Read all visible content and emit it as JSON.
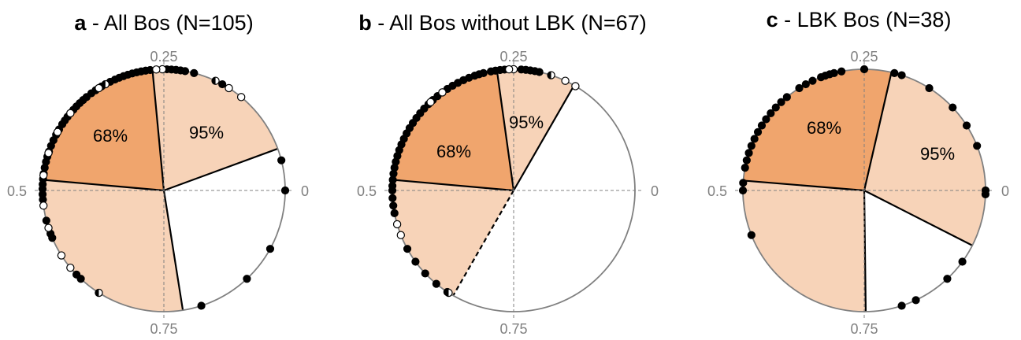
{
  "chart_data": [
    {
      "type": "circular-scatter",
      "panel_letter": "a",
      "title": " - All Bos (N=105)",
      "axis_labels": [
        "0",
        "0.25",
        "0.5",
        "0.75"
      ],
      "sectors": [
        {
          "label": "68%",
          "from": 0.265,
          "to": 0.486,
          "fill": "#f0a56d"
        },
        {
          "label": "95%",
          "from": 0.056,
          "to": 0.265,
          "fill": "#f7d3b8"
        },
        {
          "label": "",
          "from": 0.486,
          "to": 0.775,
          "fill": "#f7d3b8"
        }
      ],
      "points_black": [
        0.268,
        0.274,
        0.28,
        0.286,
        0.292,
        0.298,
        0.304,
        0.31,
        0.316,
        0.323,
        0.33,
        0.336,
        0.345,
        0.352,
        0.36,
        0.366,
        0.372,
        0.378,
        0.384,
        0.39,
        0.396,
        0.402,
        0.408,
        0.416,
        0.424,
        0.432,
        0.44,
        0.448,
        0.455,
        0.462,
        0.47,
        0.478,
        0.485,
        0.492,
        0.498,
        0.505,
        0.512,
        0.54,
        0.558,
        0.564,
        0.622,
        0.63,
        0.246,
        0.24,
        0.234,
        0.228,
        0.222,
        0.21,
        0.17,
        0.04,
        0.0,
        0.92,
        0.87,
        0.8
      ],
      "points_white": [
        0.252,
        0.26,
        0.34,
        0.39,
        0.42,
        0.45,
        0.48,
        0.52,
        0.55,
        0.59,
        0.61,
        0.16,
        0.14
      ],
      "points_half": [
        0.33,
        0.66,
        0.18
      ]
    },
    {
      "type": "circular-scatter",
      "panel_letter": "b",
      "title": " - All Bos without LBK (N=67)",
      "axis_labels": [
        "0",
        "0.25",
        "0.5",
        "0.75"
      ],
      "sectors": [
        {
          "label": "68%",
          "from": 0.272,
          "to": 0.486,
          "fill": "#f0a56d"
        },
        {
          "label": "95%",
          "from": 0.167,
          "to": 0.272,
          "fill": "#f7d3b8"
        },
        {
          "label": "",
          "from": 0.486,
          "to": 0.667,
          "fill": "#f7d3b8"
        }
      ],
      "points_black": [
        0.262,
        0.268,
        0.274,
        0.28,
        0.29,
        0.296,
        0.302,
        0.31,
        0.318,
        0.326,
        0.334,
        0.342,
        0.35,
        0.358,
        0.366,
        0.374,
        0.382,
        0.39,
        0.398,
        0.406,
        0.414,
        0.422,
        0.43,
        0.438,
        0.446,
        0.454,
        0.462,
        0.47,
        0.478,
        0.486,
        0.494,
        0.5,
        0.51,
        0.52,
        0.53,
        0.58,
        0.6,
        0.62,
        0.64,
        0.658,
        0.24,
        0.234,
        0.228,
        0.222,
        0.216
      ],
      "points_white": [
        0.25,
        0.256,
        0.35,
        0.37,
        0.545,
        0.56,
        0.18,
        0.165
      ],
      "points_half": [
        0.66,
        0.2
      ]
    },
    {
      "type": "circular-scatter",
      "panel_letter": "c",
      "title": " - LBK Bos (N=38)",
      "axis_labels": [
        "0",
        "0.25",
        "0.5",
        "0.75"
      ],
      "sectors": [
        {
          "label": "68%",
          "from": 0.214,
          "to": 0.487,
          "fill": "#f0a56d"
        },
        {
          "label": "95%",
          "from": 0.925,
          "to": 1.214,
          "fill": "#f7d3b8"
        },
        {
          "label": "",
          "from": 0.487,
          "to": 0.752,
          "fill": "#f7d3b8"
        }
      ],
      "points_black": [
        0.25,
        0.28,
        0.29,
        0.296,
        0.302,
        0.308,
        0.32,
        0.33,
        0.34,
        0.36,
        0.37,
        0.38,
        0.39,
        0.4,
        0.41,
        0.42,
        0.43,
        0.44,
        0.45,
        0.46,
        0.47,
        0.49,
        0.5,
        0.56,
        0.8,
        0.82,
        0.87,
        0.9,
        0.995,
        0.0,
        0.06,
        0.09,
        0.12,
        0.16,
        0.2,
        0.21
      ],
      "points_white": [],
      "points_half": []
    }
  ]
}
